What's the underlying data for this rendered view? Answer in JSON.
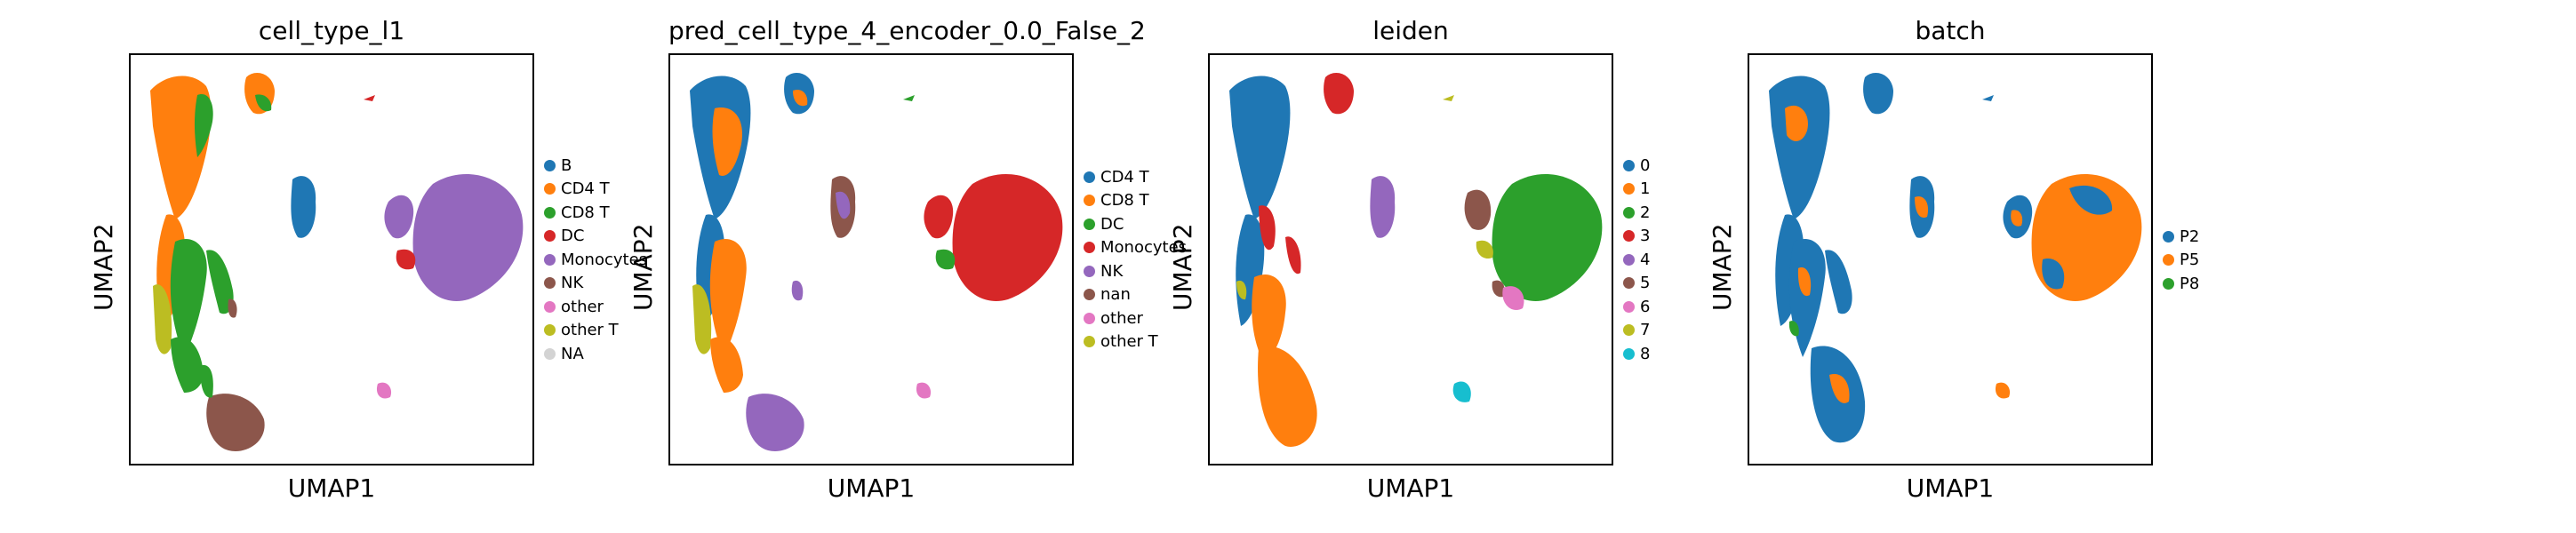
{
  "figure": {
    "x_axis_label": "UMAP1",
    "y_axis_label": "UMAP2"
  },
  "chart_data": [
    {
      "type": "scatter",
      "title": "cell_type_l1",
      "xlabel": "UMAP1",
      "ylabel": "UMAP2",
      "legend_position": "right",
      "series": [
        {
          "name": "B",
          "color": "#1f77b4"
        },
        {
          "name": "CD4 T",
          "color": "#ff7f0e"
        },
        {
          "name": "CD8 T",
          "color": "#2ca02c"
        },
        {
          "name": "DC",
          "color": "#d62728"
        },
        {
          "name": "Monocytes",
          "color": "#9467bd"
        },
        {
          "name": "NK",
          "color": "#8c564b"
        },
        {
          "name": "other",
          "color": "#e377c2"
        },
        {
          "name": "other T",
          "color": "#bcbd22"
        },
        {
          "name": "NA",
          "color": "#d3d3d3"
        }
      ],
      "clusters": [
        {
          "region": "upper-left arm",
          "color": "#ff7f0e"
        },
        {
          "region": "upper-left arm tip",
          "color": "#2ca02c"
        },
        {
          "region": "top small island",
          "color": "#ff7f0e"
        },
        {
          "region": "top tiny island",
          "color": "#d62728"
        },
        {
          "region": "middle small island",
          "color": "#1f77b4"
        },
        {
          "region": "right large cluster",
          "color": "#9467bd"
        },
        {
          "region": "right cluster edge",
          "color": "#d62728"
        },
        {
          "region": "lower-left arm",
          "color": "#2ca02c"
        },
        {
          "region": "bottom blob",
          "color": "#8c564b"
        },
        {
          "region": "small lower-right island",
          "color": "#e377c2"
        }
      ]
    },
    {
      "type": "scatter",
      "title": "pred_cell_type_4_encoder_0.0_False_2",
      "xlabel": "UMAP1",
      "ylabel": "UMAP2",
      "legend_position": "right",
      "series": [
        {
          "name": "CD4 T",
          "color": "#1f77b4"
        },
        {
          "name": "CD8 T",
          "color": "#ff7f0e"
        },
        {
          "name": "DC",
          "color": "#2ca02c"
        },
        {
          "name": "Monocytes",
          "color": "#d62728"
        },
        {
          "name": "NK",
          "color": "#9467bd"
        },
        {
          "name": "nan",
          "color": "#8c564b"
        },
        {
          "name": "other",
          "color": "#e377c2"
        },
        {
          "name": "other T",
          "color": "#bcbd22"
        }
      ]
    },
    {
      "type": "scatter",
      "title": "leiden",
      "xlabel": "UMAP1",
      "ylabel": "UMAP2",
      "legend_position": "right",
      "series": [
        {
          "name": "0",
          "color": "#1f77b4"
        },
        {
          "name": "1",
          "color": "#ff7f0e"
        },
        {
          "name": "2",
          "color": "#2ca02c"
        },
        {
          "name": "3",
          "color": "#d62728"
        },
        {
          "name": "4",
          "color": "#9467bd"
        },
        {
          "name": "5",
          "color": "#8c564b"
        },
        {
          "name": "6",
          "color": "#e377c2"
        },
        {
          "name": "7",
          "color": "#bcbd22"
        },
        {
          "name": "8",
          "color": "#17becf"
        }
      ]
    },
    {
      "type": "scatter",
      "title": "batch",
      "xlabel": "UMAP1",
      "ylabel": "UMAP2",
      "legend_position": "right",
      "series": [
        {
          "name": "P2",
          "color": "#1f77b4"
        },
        {
          "name": "P5",
          "color": "#ff7f0e"
        },
        {
          "name": "P8",
          "color": "#2ca02c"
        }
      ]
    }
  ]
}
